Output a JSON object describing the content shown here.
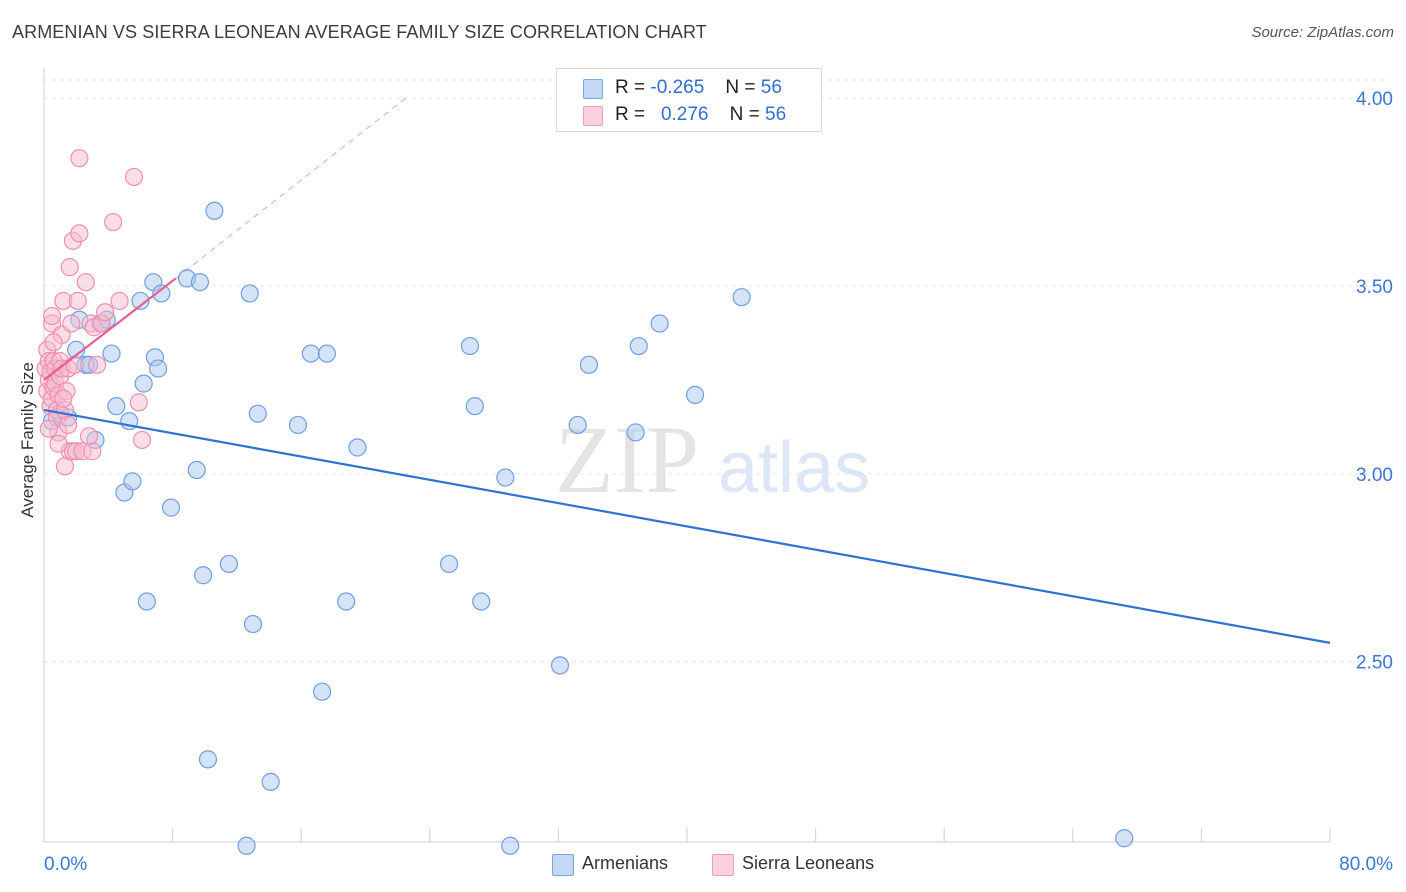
{
  "header": {
    "title": "ARMENIAN VS SIERRA LEONEAN AVERAGE FAMILY SIZE CORRELATION CHART",
    "source": "Source: ZipAtlas.com"
  },
  "watermark": {
    "zip": "ZIP",
    "atlas": "atlas"
  },
  "legend_top": {
    "rows": [
      {
        "r_label": "R =",
        "r_value": "-0.265",
        "n_label": "N =",
        "n_value": "56"
      },
      {
        "r_label": "R =",
        "r_value": "0.276",
        "n_label": "N =",
        "n_value": "56"
      }
    ]
  },
  "colors": {
    "armenians_fill": "#aac8f0",
    "armenians_stroke": "#6f9fe0",
    "armenians_line": "#2f73d2",
    "sierra_fill": "#f8bcd0",
    "sierra_stroke": "#ee8fb0",
    "sierra_line": "#e2608a",
    "axis_tick_text": "#3a78d4",
    "grid": "#e6e6e6"
  },
  "chart_data": {
    "type": "scatter",
    "title": "ARMENIAN VS SIERRA LEONEAN AVERAGE FAMILY SIZE CORRELATION CHART",
    "xlabel": "",
    "ylabel": "Average Family Size",
    "xlim": [
      0,
      80
    ],
    "ylim": [
      2.02,
      4.08
    ],
    "x_tick_labels": [
      "0.0%",
      "80.0%"
    ],
    "y_ticks": [
      2.5,
      3.0,
      3.5,
      4.0
    ],
    "y_tick_labels": [
      "2.50",
      "3.00",
      "3.50",
      "4.00"
    ],
    "grid": true,
    "legend_position": "bottom",
    "series": [
      {
        "name": "Armenians",
        "r": -0.265,
        "n": 56,
        "trend": {
          "x": [
            0,
            80
          ],
          "y": [
            3.17,
            2.55
          ]
        },
        "points": [
          [
            0.5,
            3.14
          ],
          [
            1.5,
            3.15
          ],
          [
            2.2,
            3.41
          ],
          [
            2.6,
            3.29
          ],
          [
            2.8,
            3.29
          ],
          [
            3.2,
            3.09
          ],
          [
            3.5,
            3.4
          ],
          [
            3.9,
            3.41
          ],
          [
            4.2,
            3.32
          ],
          [
            4.5,
            3.18
          ],
          [
            5.0,
            2.95
          ],
          [
            5.3,
            3.14
          ],
          [
            5.5,
            2.98
          ],
          [
            6.2,
            3.24
          ],
          [
            6.4,
            2.66
          ],
          [
            6.8,
            3.51
          ],
          [
            6.9,
            3.31
          ],
          [
            7.1,
            3.28
          ],
          [
            7.3,
            3.48
          ],
          [
            7.9,
            2.91
          ],
          [
            8.9,
            3.52
          ],
          [
            9.5,
            3.01
          ],
          [
            9.7,
            3.51
          ],
          [
            9.9,
            2.73
          ],
          [
            10.2,
            2.24
          ],
          [
            10.6,
            3.7
          ],
          [
            11.5,
            2.76
          ],
          [
            12.6,
            2.01
          ],
          [
            12.8,
            3.48
          ],
          [
            13.0,
            2.6
          ],
          [
            13.3,
            3.16
          ],
          [
            14.1,
            2.18
          ],
          [
            15.8,
            3.13
          ],
          [
            16.6,
            3.32
          ],
          [
            17.3,
            2.42
          ],
          [
            17.6,
            3.32
          ],
          [
            18.8,
            2.66
          ],
          [
            19.5,
            3.07
          ],
          [
            25.2,
            2.76
          ],
          [
            26.5,
            3.34
          ],
          [
            26.8,
            3.18
          ],
          [
            27.2,
            2.66
          ],
          [
            28.7,
            2.99
          ],
          [
            29.0,
            2.01
          ],
          [
            32.1,
            2.49
          ],
          [
            33.2,
            3.13
          ],
          [
            33.9,
            3.29
          ],
          [
            36.8,
            3.11
          ],
          [
            37.0,
            3.34
          ],
          [
            38.3,
            3.4
          ],
          [
            40.5,
            3.21
          ],
          [
            43.4,
            3.47
          ],
          [
            67.2,
            2.03
          ],
          [
            1.0,
            3.16
          ],
          [
            2.0,
            3.33
          ],
          [
            6.0,
            3.46
          ]
        ]
      },
      {
        "name": "Sierra Leoneans",
        "r": 0.276,
        "n": 56,
        "trend": {
          "x": [
            0,
            8.2
          ],
          "y": [
            3.25,
            3.52
          ]
        },
        "trend_extended": {
          "x": [
            8.2,
            22.5
          ],
          "y": [
            3.52,
            4.0
          ]
        },
        "points": [
          [
            0.1,
            3.28
          ],
          [
            0.2,
            3.22
          ],
          [
            0.2,
            3.33
          ],
          [
            0.3,
            3.25
          ],
          [
            0.3,
            3.3
          ],
          [
            0.4,
            3.18
          ],
          [
            0.4,
            3.27
          ],
          [
            0.5,
            3.2
          ],
          [
            0.5,
            3.4
          ],
          [
            0.5,
            3.42
          ],
          [
            0.6,
            3.3
          ],
          [
            0.6,
            3.23
          ],
          [
            0.7,
            3.28
          ],
          [
            0.7,
            3.24
          ],
          [
            0.8,
            3.17
          ],
          [
            0.8,
            3.15
          ],
          [
            0.9,
            3.21
          ],
          [
            0.9,
            3.11
          ],
          [
            1.0,
            3.26
          ],
          [
            1.0,
            3.3
          ],
          [
            1.1,
            3.28
          ],
          [
            1.1,
            3.37
          ],
          [
            1.2,
            3.46
          ],
          [
            1.3,
            3.17
          ],
          [
            1.3,
            3.02
          ],
          [
            1.4,
            3.22
          ],
          [
            1.5,
            3.13
          ],
          [
            1.5,
            3.28
          ],
          [
            1.6,
            3.55
          ],
          [
            1.6,
            3.06
          ],
          [
            1.7,
            3.4
          ],
          [
            1.8,
            3.62
          ],
          [
            1.8,
            3.06
          ],
          [
            1.9,
            3.29
          ],
          [
            2.0,
            3.06
          ],
          [
            2.1,
            3.46
          ],
          [
            2.2,
            3.84
          ],
          [
            2.2,
            3.64
          ],
          [
            2.4,
            3.06
          ],
          [
            2.6,
            3.51
          ],
          [
            2.9,
            3.4
          ],
          [
            3.0,
            3.06
          ],
          [
            3.1,
            3.39
          ],
          [
            3.3,
            3.29
          ],
          [
            3.6,
            3.4
          ],
          [
            3.8,
            3.43
          ],
          [
            4.3,
            3.67
          ],
          [
            4.7,
            3.46
          ],
          [
            5.6,
            3.79
          ],
          [
            5.9,
            3.19
          ],
          [
            6.1,
            3.09
          ],
          [
            0.3,
            3.12
          ],
          [
            0.6,
            3.35
          ],
          [
            1.2,
            3.2
          ],
          [
            2.8,
            3.1
          ],
          [
            0.9,
            3.08
          ]
        ]
      }
    ]
  },
  "legend_bottom": {
    "items": [
      {
        "label": "Armenians"
      },
      {
        "label": "Sierra Leoneans"
      }
    ]
  }
}
